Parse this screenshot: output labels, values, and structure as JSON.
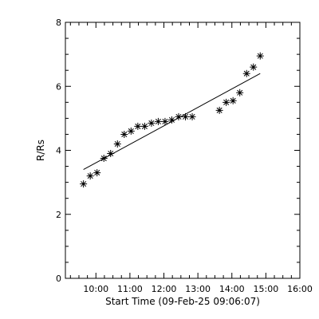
{
  "chart_data": {
    "type": "scatter",
    "title": "",
    "xlabel": "Start Time (09-Feb-25 09:06:07)",
    "ylabel": "R/Rs",
    "xlim": [
      "09:06:07",
      "16:00"
    ],
    "ylim": [
      0,
      8
    ],
    "x_ticks": [
      "10:00",
      "11:00",
      "12:00",
      "13:00",
      "14:00",
      "15:00",
      "16:00"
    ],
    "y_ticks": [
      "0",
      "2",
      "4",
      "6",
      "8"
    ],
    "marker": "asterisk",
    "grid": false,
    "legend": "none",
    "series": [
      {
        "points": [
          {
            "x": "09:38",
            "y": 2.95
          },
          {
            "x": "09:50",
            "y": 3.2
          },
          {
            "x": "10:02",
            "y": 3.3
          },
          {
            "x": "10:14",
            "y": 3.75
          },
          {
            "x": "10:26",
            "y": 3.9
          },
          {
            "x": "10:38",
            "y": 4.2
          },
          {
            "x": "10:50",
            "y": 4.5
          },
          {
            "x": "11:02",
            "y": 4.6
          },
          {
            "x": "11:14",
            "y": 4.75
          },
          {
            "x": "11:26",
            "y": 4.75
          },
          {
            "x": "11:38",
            "y": 4.85
          },
          {
            "x": "11:50",
            "y": 4.9
          },
          {
            "x": "12:02",
            "y": 4.9
          },
          {
            "x": "12:14",
            "y": 4.95
          },
          {
            "x": "12:26",
            "y": 5.05
          },
          {
            "x": "12:38",
            "y": 5.05
          },
          {
            "x": "12:50",
            "y": 5.05
          },
          {
            "x": "13:38",
            "y": 5.25
          },
          {
            "x": "13:50",
            "y": 5.5
          },
          {
            "x": "14:02",
            "y": 5.55
          },
          {
            "x": "14:14",
            "y": 5.8
          },
          {
            "x": "14:26",
            "y": 6.4
          },
          {
            "x": "14:38",
            "y": 6.6
          },
          {
            "x": "14:50",
            "y": 6.95
          }
        ]
      }
    ],
    "fit_line": [
      {
        "x": "09:38",
        "y": 3.4
      },
      {
        "x": "14:50",
        "y": 6.4
      }
    ]
  }
}
